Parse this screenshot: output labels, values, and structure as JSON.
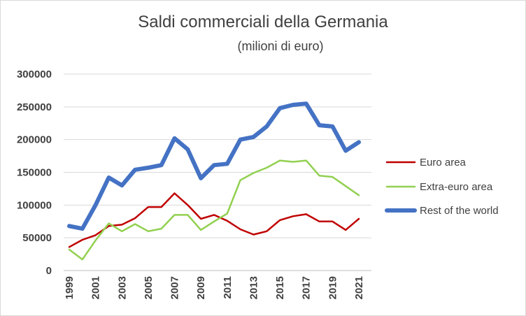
{
  "chart_data": {
    "type": "line",
    "title": "Saldi commerciali della Germania",
    "subtitle": "(milioni di euro)",
    "xlabel": "",
    "ylabel": "",
    "ylim": [
      0,
      300000
    ],
    "yticks": [
      "0",
      "50000",
      "100000",
      "150000",
      "200000",
      "250000",
      "300000"
    ],
    "x": [
      1999,
      2000,
      2001,
      2002,
      2003,
      2004,
      2005,
      2006,
      2007,
      2008,
      2009,
      2010,
      2011,
      2012,
      2013,
      2014,
      2015,
      2016,
      2017,
      2018,
      2019,
      2020,
      2021
    ],
    "xtick_labels": [
      "1999",
      "2001",
      "2003",
      "2005",
      "2007",
      "2009",
      "2011",
      "2013",
      "2015",
      "2017",
      "2019",
      "2021"
    ],
    "grid": "horizontal",
    "legend_position": "right",
    "series": [
      {
        "name": "Euro area",
        "color": "#c00000",
        "values": [
          36000,
          47000,
          54000,
          68000,
          70000,
          80000,
          97000,
          97000,
          118000,
          100000,
          79000,
          85000,
          76000,
          63000,
          55000,
          60000,
          77000,
          83000,
          86000,
          75000,
          75000,
          62000,
          79000
        ]
      },
      {
        "name": "Extra-euro area",
        "color": "#92d050",
        "values": [
          32000,
          17000,
          46000,
          72000,
          60000,
          71000,
          60000,
          64000,
          85000,
          85000,
          62000,
          75000,
          87000,
          138000,
          149000,
          157000,
          168000,
          166000,
          168000,
          145000,
          143000,
          129000,
          115000
        ]
      },
      {
        "name": "Rest of the world",
        "color": "#4472c4",
        "values": [
          68000,
          64000,
          100000,
          142000,
          130000,
          154000,
          157000,
          161000,
          202000,
          185000,
          141000,
          161000,
          163000,
          200000,
          204000,
          220000,
          248000,
          253000,
          255000,
          222000,
          220000,
          183000,
          196000
        ]
      }
    ]
  }
}
